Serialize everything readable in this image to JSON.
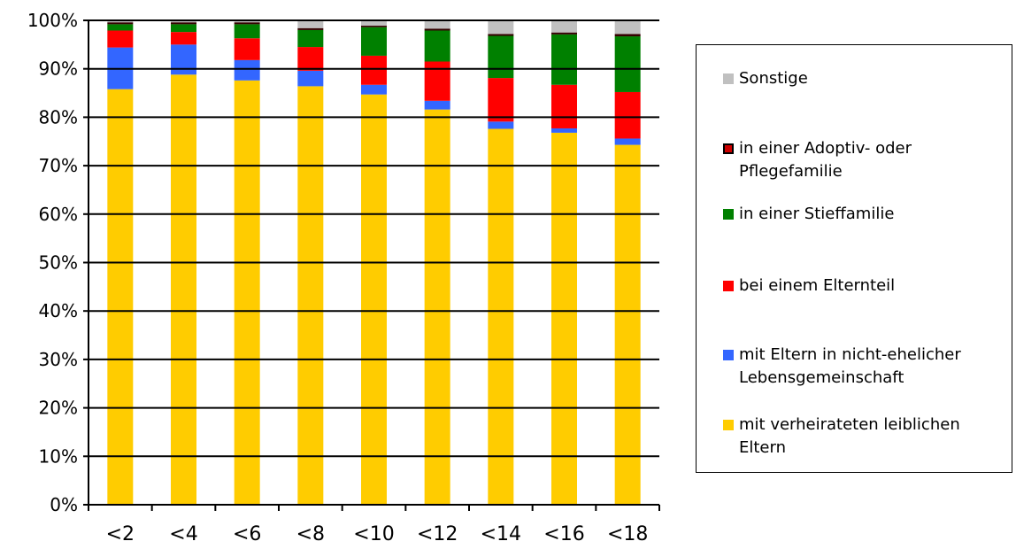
{
  "chart_data": {
    "type": "bar",
    "stacked": true,
    "percent": true,
    "categories": [
      "<2",
      "<4",
      "<6",
      "<8",
      "<10",
      "<12",
      "<14",
      "<16",
      "<18"
    ],
    "series": [
      {
        "name": "mit verheirateten leiblichen Eltern",
        "color": "#ffcc00",
        "values": [
          85.8,
          88.8,
          87.6,
          86.4,
          84.7,
          81.6,
          77.6,
          76.8,
          74.3
        ]
      },
      {
        "name": "mit Eltern in nicht-ehelicher Lebensgemeinschaft",
        "color": "#3366ff",
        "values": [
          8.6,
          6.2,
          4.2,
          3.2,
          2.0,
          1.8,
          1.5,
          0.9,
          1.3
        ]
      },
      {
        "name": "bei einem Elternteil",
        "color": "#ff0000",
        "values": [
          3.5,
          2.6,
          4.5,
          4.9,
          6.0,
          8.1,
          9.0,
          9.0,
          9.6
        ]
      },
      {
        "name": "in einer Stieffamilie",
        "color": "#008000",
        "values": [
          1.3,
          1.6,
          2.9,
          3.5,
          5.9,
          6.4,
          8.7,
          10.4,
          11.5
        ]
      },
      {
        "name": "in einer Adoptiv- oder Pflegefamilie",
        "color": "#330000",
        "values": [
          0.4,
          0.4,
          0.4,
          0.4,
          0.3,
          0.4,
          0.4,
          0.4,
          0.5
        ]
      },
      {
        "name": "Sonstige",
        "color": "#c0c0c0",
        "values": [
          0.4,
          0.4,
          0.4,
          1.6,
          1.1,
          1.7,
          2.8,
          2.5,
          2.8
        ]
      }
    ],
    "ylim": [
      0,
      100
    ],
    "yticks": [
      "0%",
      "10%",
      "20%",
      "30%",
      "40%",
      "50%",
      "60%",
      "70%",
      "80%",
      "90%",
      "100%"
    ],
    "grid": true,
    "legend_position": "right"
  },
  "legend": {
    "items": [
      {
        "label": "Sonstige",
        "color": "#c0c0c0"
      },
      {
        "label": "in einer Adoptiv- oder\nPflegefamilie",
        "color": "#330000"
      },
      {
        "label": "in einer Stieffamilie",
        "color": "#008000"
      },
      {
        "label": "bei einem Elternteil",
        "color": "#ff0000"
      },
      {
        "label": "mit Eltern in nicht-ehelicher\nLebensgemeinschaft",
        "color": "#3366ff"
      },
      {
        "label": "mit verheirateten leiblichen\nEltern",
        "color": "#ffcc00"
      }
    ]
  }
}
